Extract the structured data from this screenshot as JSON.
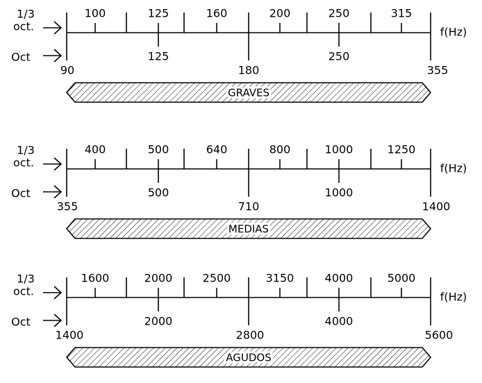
{
  "panels": [
    {
      "third_label": "1/3",
      "oct_label": "oct.",
      "octave_label": "Oct",
      "unit": "f(Hz)",
      "third_centers": [
        "100",
        "125",
        "160",
        "200",
        "250",
        "315"
      ],
      "octave_centers": [
        "125",
        "250"
      ],
      "edges": [
        "90",
        "180",
        "355"
      ],
      "band": "GRAVES"
    },
    {
      "third_label": "1/3",
      "oct_label": "oct.",
      "octave_label": "Oct",
      "unit": "f(Hz)",
      "third_centers": [
        "400",
        "500",
        "640",
        "800",
        "1000",
        "1250"
      ],
      "octave_centers": [
        "500",
        "1000"
      ],
      "edges": [
        "355",
        "710",
        "1400"
      ],
      "band": "MEDIAS"
    },
    {
      "third_label": "1/3",
      "oct_label": "oct.",
      "octave_label": "Oct",
      "unit": "f(Hz)",
      "third_centers": [
        "1600",
        "2000",
        "2500",
        "3150",
        "4000",
        "5000"
      ],
      "octave_centers": [
        "2000",
        "4000"
      ],
      "edges": [
        "1400",
        "2800",
        "5600"
      ],
      "band": "AGUDOS"
    }
  ]
}
